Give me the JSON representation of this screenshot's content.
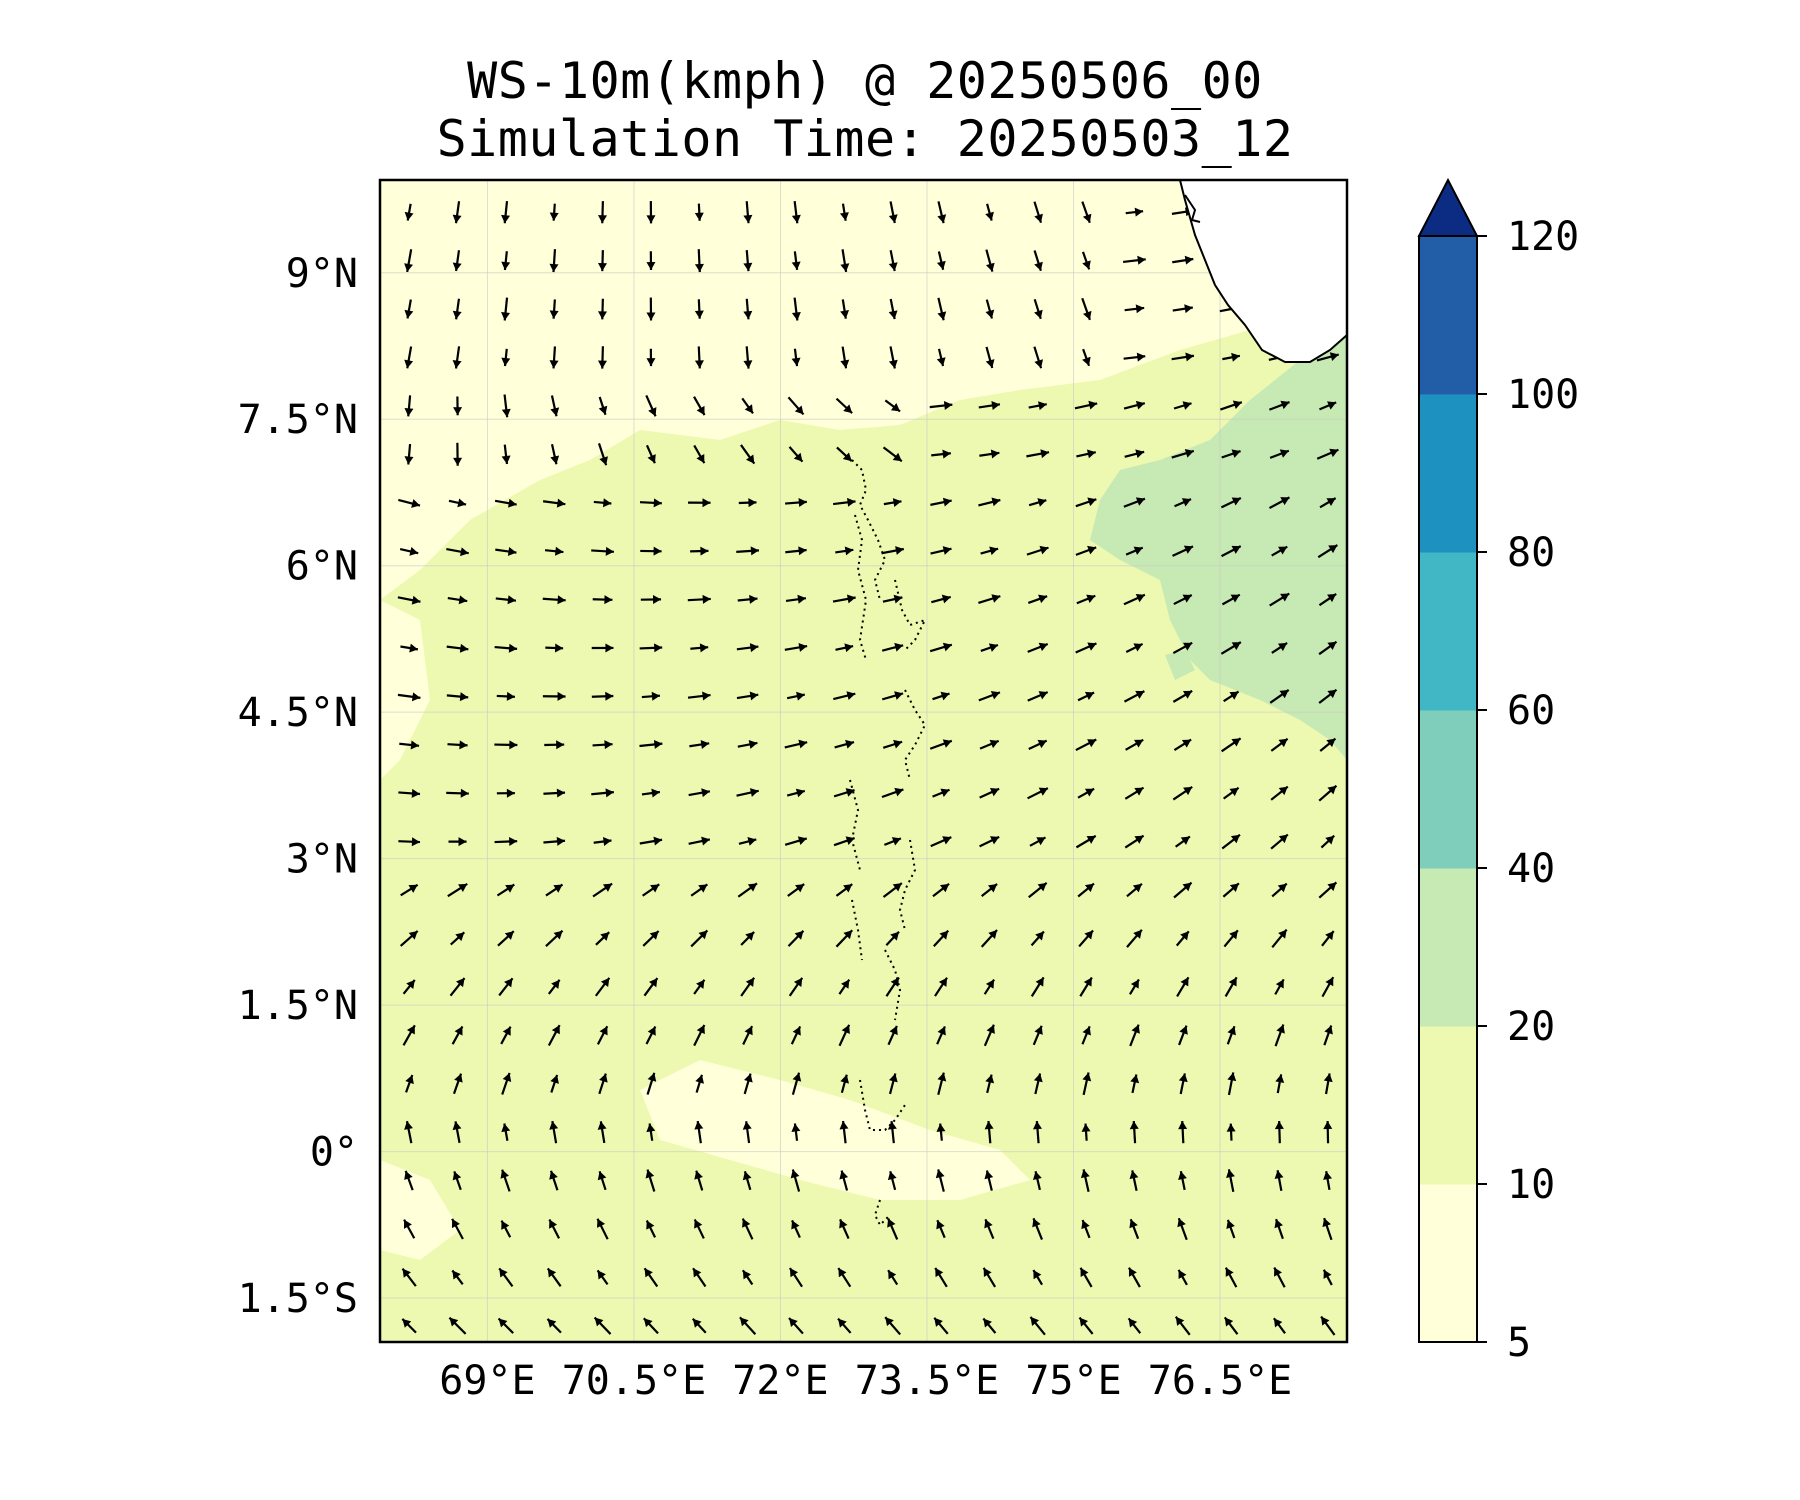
{
  "title": "WS-10m(kmph) @ 20250506_00",
  "subtitle": "Simulation Time: 20250503_12",
  "map": {
    "lon_range": [
      67.9,
      77.8
    ],
    "lat_range": [
      -1.95,
      9.95
    ],
    "lon_ticks": [
      {
        "value": 69.0,
        "label": "69°E"
      },
      {
        "value": 70.5,
        "label": "70.5°E"
      },
      {
        "value": 72.0,
        "label": "72°E"
      },
      {
        "value": 73.5,
        "label": "73.5°E"
      },
      {
        "value": 75.0,
        "label": "75°E"
      },
      {
        "value": 76.5,
        "label": "76.5°E"
      }
    ],
    "lat_ticks": [
      {
        "value": 9.0,
        "label": "9°N"
      },
      {
        "value": 7.5,
        "label": "7.5°N"
      },
      {
        "value": 6.0,
        "label": "6°N"
      },
      {
        "value": 4.5,
        "label": "4.5°N"
      },
      {
        "value": 3.0,
        "label": "3°N"
      },
      {
        "value": 1.5,
        "label": "1.5°N"
      },
      {
        "value": 0.0,
        "label": "0°"
      },
      {
        "value": -1.5,
        "label": "1.5°S"
      }
    ],
    "gridlines": true
  },
  "colorbar": {
    "levels": [
      5,
      10,
      20,
      40,
      60,
      80,
      100,
      120
    ],
    "colors": [
      "#ffffd9",
      "#edf8b1",
      "#c7e9b4",
      "#7fcdbb",
      "#41b6c4",
      "#1d91c0",
      "#225ea8",
      "#0c2c84"
    ],
    "extend": "max",
    "ticks": [
      {
        "value": 120,
        "label": "120"
      },
      {
        "value": 100,
        "label": "100"
      },
      {
        "value": 80,
        "label": "80"
      },
      {
        "value": 60,
        "label": "60"
      },
      {
        "value": 40,
        "label": "40"
      },
      {
        "value": 20,
        "label": "20"
      },
      {
        "value": 10,
        "label": "10"
      },
      {
        "value": 5,
        "label": "5"
      }
    ]
  },
  "features": {
    "coastline": "Sri Lanka",
    "islands": "Maldives",
    "wind_field": "vectors"
  }
}
